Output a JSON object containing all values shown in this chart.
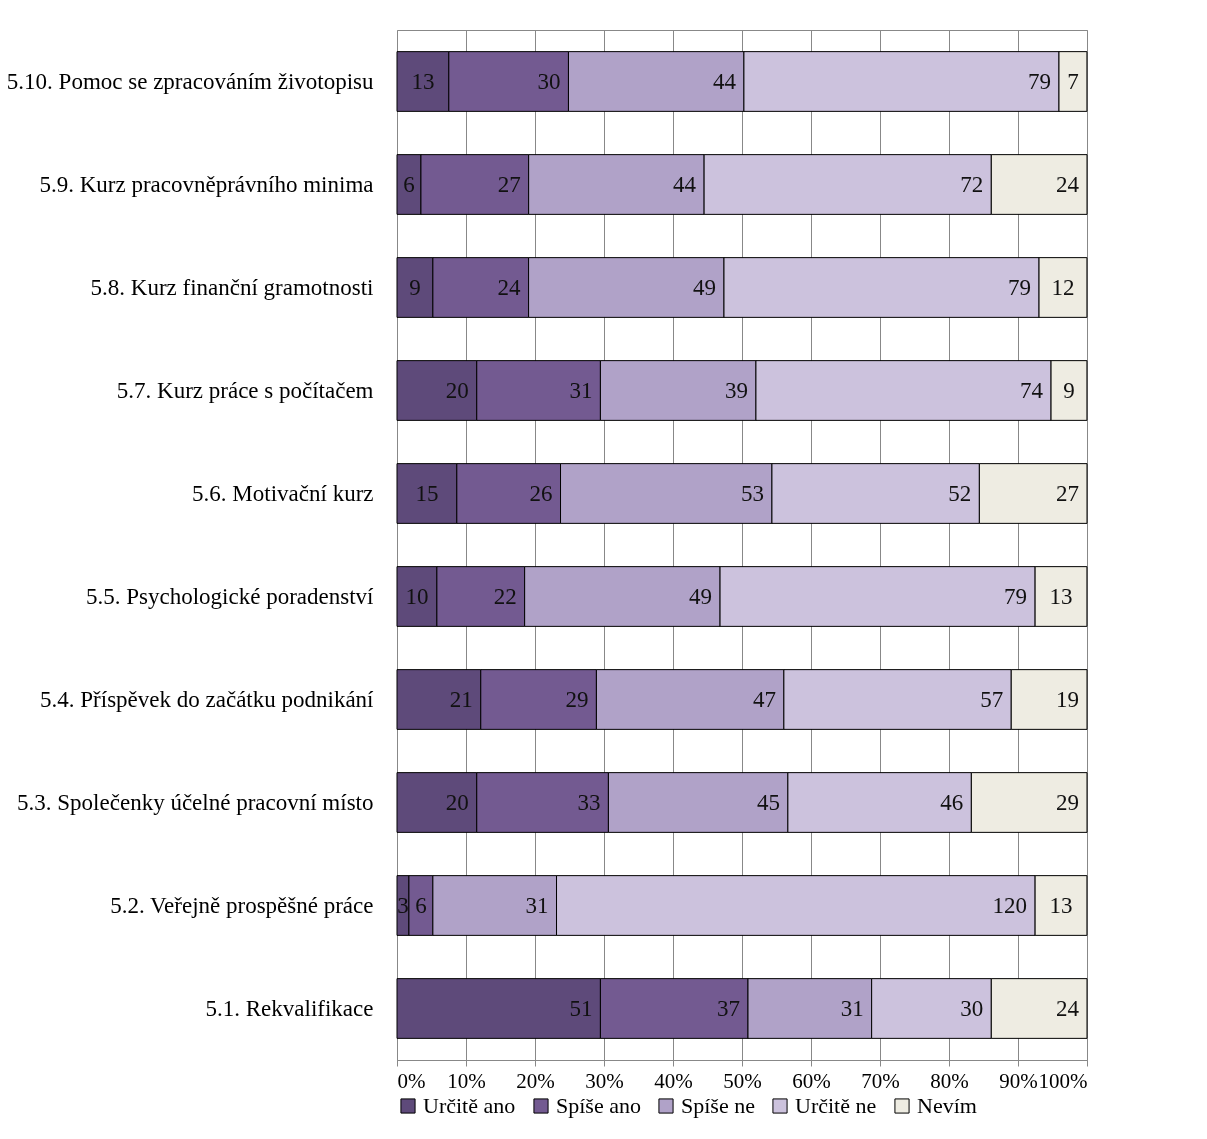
{
  "chart_data": {
    "type": "bar",
    "orientation": "horizontal",
    "stacked": true,
    "grid": true,
    "legend": "bottom",
    "categories": [
      "5.10. Pomoc se zpracováním životopisu",
      "5.9. Kurz pracovněprávního minima",
      "5.8. Kurz finanční gramotnosti",
      "5.7. Kurz práce s počítačem",
      "5.6. Motivační kurz",
      "5.5. Psychologické poradenství",
      "5.4. Příspěvek do začátku podnikání",
      "5.3. Společenky účelné pracovní místo",
      "5.2. Veřejně prospěšné práce",
      "5.1. Rekvalifikace"
    ],
    "xlim": [
      0,
      100
    ],
    "xticks": [
      {
        "value": 0,
        "label": "0%"
      },
      {
        "value": 10,
        "label": "10%"
      },
      {
        "value": 20,
        "label": "20%"
      },
      {
        "value": 30,
        "label": "30%"
      },
      {
        "value": 40,
        "label": "40%"
      },
      {
        "value": 50,
        "label": "50%"
      },
      {
        "value": 60,
        "label": "60%"
      },
      {
        "value": 70,
        "label": "70%"
      },
      {
        "value": 80,
        "label": "80%"
      },
      {
        "value": 90,
        "label": "90%"
      },
      {
        "value": 100,
        "label": "100%"
      }
    ],
    "series": [
      {
        "name": "Určitě ano",
        "color": "#5e4a7a",
        "values": [
          7.51,
          3.47,
          5.2,
          11.56,
          8.67,
          5.78,
          12.14,
          11.56,
          1.73,
          29.48
        ]
      },
      {
        "name": "Spíše ano",
        "color": "#735a91",
        "values": [
          17.34,
          15.61,
          13.87,
          17.92,
          15.03,
          12.72,
          16.76,
          19.08,
          3.47,
          21.39
        ]
      },
      {
        "name": "Spíše ne",
        "color": "#b0a2c8",
        "values": [
          25.43,
          25.43,
          28.32,
          22.54,
          30.64,
          28.32,
          27.17,
          26.01,
          17.92,
          17.92
        ]
      },
      {
        "name": "Určitě ne",
        "color": "#ccc2dd",
        "values": [
          45.66,
          41.62,
          45.66,
          42.77,
          30.06,
          45.66,
          32.95,
          26.59,
          69.36,
          17.34
        ]
      },
      {
        "name": "Nevím",
        "color": "#eeece2",
        "values": [
          4.05,
          13.87,
          6.94,
          5.2,
          15.6,
          7.51,
          10.98,
          16.76,
          7.51,
          13.87
        ]
      }
    ],
    "annotations": [
      {
        "text": "13",
        "x": 7.51,
        "y": "5.10. Pomoc se zpracováním životopisu"
      },
      {
        "text": "30",
        "x": 24.85,
        "y": "5.10. Pomoc se zpracováním životopisu"
      },
      {
        "text": "44",
        "x": 50.28,
        "y": "5.10. Pomoc se zpracováním životopisu"
      },
      {
        "text": "79",
        "x": 95.94,
        "y": "5.10. Pomoc se zpracováním životopisu"
      },
      {
        "text": "7",
        "x": 99.99,
        "y": "5.10. Pomoc se zpracováním životopisu"
      },
      {
        "text": "6",
        "x": 3.47,
        "y": "5.9. Kurz pracovněprávního minima"
      },
      {
        "text": "27",
        "x": 19.08,
        "y": "5.9. Kurz pracovněprávního minima"
      },
      {
        "text": "44",
        "x": 44.51,
        "y": "5.9. Kurz pracovněprávního minima"
      },
      {
        "text": "72",
        "x": 86.13,
        "y": "5.9. Kurz pracovněprávního minima"
      },
      {
        "text": "24",
        "x": 100,
        "y": "5.9. Kurz pracovněprávního minima"
      },
      {
        "text": "9",
        "x": 5.2,
        "y": "5.8. Kurz finanční gramotnosti"
      },
      {
        "text": "24",
        "x": 19.07,
        "y": "5.8. Kurz finanční gramotnosti"
      },
      {
        "text": "49",
        "x": 47.39,
        "y": "5.8. Kurz finanční gramotnosti"
      },
      {
        "text": "79",
        "x": 93.05,
        "y": "5.8. Kurz finanční gramotnosti"
      },
      {
        "text": "12",
        "x": 99.99,
        "y": "5.8. Kurz finanční gramotnosti"
      },
      {
        "text": "20",
        "x": 11.56,
        "y": "5.7. Kurz práce s počítačem"
      },
      {
        "text": "31",
        "x": 29.48,
        "y": "5.7. Kurz práce s počítačem"
      },
      {
        "text": "39",
        "x": 52.02,
        "y": "5.7. Kurz práce s počítačem"
      },
      {
        "text": "74",
        "x": 94.79,
        "y": "5.7. Kurz práce s počítačem"
      },
      {
        "text": "9",
        "x": 99.99,
        "y": "5.7. Kurz práce s počítačem"
      },
      {
        "text": "15",
        "x": 8.67,
        "y": "5.6. Motivační kurz"
      },
      {
        "text": "26",
        "x": 23.7,
        "y": "5.6. Motivační kurz"
      },
      {
        "text": "53",
        "x": 54.34,
        "y": "5.6. Motivační kurz"
      },
      {
        "text": "52",
        "x": 84.4,
        "y": "5.6. Motivační kurz"
      },
      {
        "text": "27",
        "x": 100,
        "y": "5.6. Motivační kurz"
      },
      {
        "text": "10",
        "x": 5.78,
        "y": "5.5. Psychologické poradenství"
      },
      {
        "text": "22",
        "x": 18.5,
        "y": "5.5. Psychologické poradenství"
      },
      {
        "text": "49",
        "x": 46.82,
        "y": "5.5. Psychologické poradenství"
      },
      {
        "text": "79",
        "x": 92.48,
        "y": "5.5. Psychologické poradenství"
      },
      {
        "text": "13",
        "x": 99.99,
        "y": "5.5. Psychologické poradenství"
      },
      {
        "text": "21",
        "x": 12.14,
        "y": "5.4. Příspěvek do začátku podnikání"
      },
      {
        "text": "29",
        "x": 28.9,
        "y": "5.4. Příspěvek do začátku podnikání"
      },
      {
        "text": "47",
        "x": 56.07,
        "y": "5.4. Příspěvek do začátku podnikání"
      },
      {
        "text": "57",
        "x": 89.02,
        "y": "5.4. Příspěvek do začátku podnikání"
      },
      {
        "text": "19",
        "x": 100,
        "y": "5.4. Příspěvek do začátku podnikání"
      },
      {
        "text": "20",
        "x": 11.56,
        "y": "5.3. Společenky účelné pracovní místo"
      },
      {
        "text": "33",
        "x": 30.64,
        "y": "5.3. Společenky účelné pracovní místo"
      },
      {
        "text": "45",
        "x": 56.65,
        "y": "5.3. Společenky účelné pracovní místo"
      },
      {
        "text": "46",
        "x": 83.24,
        "y": "5.3. Společenky účelné pracovní místo"
      },
      {
        "text": "29",
        "x": 100,
        "y": "5.3. Společenky účelné pracovní místo"
      },
      {
        "text": "3",
        "x": 1.73,
        "y": "5.2. Veřejně prospěšné práce"
      },
      {
        "text": "6",
        "x": 5.2,
        "y": "5.2. Veřejně prospěšné práce"
      },
      {
        "text": "31",
        "x": 23.12,
        "y": "5.2. Veřejně prospěšné práce"
      },
      {
        "text": "120",
        "x": 92.48,
        "y": "5.2. Veřejně prospěšné práce"
      },
      {
        "text": "13",
        "x": 99.99,
        "y": "5.2. Veřejně prospěšné práce"
      },
      {
        "text": "51",
        "x": 29.48,
        "y": "5.1. Rekvalifikace"
      },
      {
        "text": "37",
        "x": 50.87,
        "y": "5.1. Rekvalifikace"
      },
      {
        "text": "31",
        "x": 68.79,
        "y": "5.1. Rekvalifikace"
      },
      {
        "text": "30",
        "x": 86.13,
        "y": "5.1. Rekvalifikace"
      },
      {
        "text": "24",
        "x": 100,
        "y": "5.1. Rekvalifikace"
      }
    ]
  }
}
